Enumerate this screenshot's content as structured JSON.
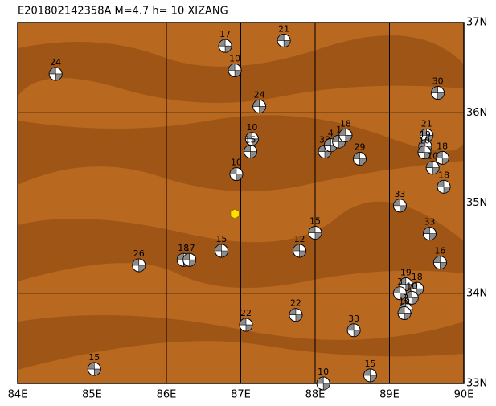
{
  "chart_data": {
    "type": "scatter",
    "title": "E201802142358A  M=4.7  h= 10  XIZANG",
    "xlim": [
      84,
      90
    ],
    "ylim": [
      33,
      37
    ],
    "xticks": [
      {
        "value": 84,
        "label": "84E"
      },
      {
        "value": 85,
        "label": "85E"
      },
      {
        "value": 86,
        "label": "86E"
      },
      {
        "value": 87,
        "label": "87E"
      },
      {
        "value": 88,
        "label": "88E"
      },
      {
        "value": 89,
        "label": "89E"
      },
      {
        "value": 90,
        "label": "90E"
      }
    ],
    "yticks": [
      {
        "value": 33,
        "label": "33N"
      },
      {
        "value": 34,
        "label": "34N"
      },
      {
        "value": 35,
        "label": "35N"
      },
      {
        "value": 36,
        "label": "36N"
      },
      {
        "value": 37,
        "label": "37N"
      }
    ],
    "grid": true,
    "background": "#b8691f",
    "color": "#8c8c8c",
    "x": [
      84.51,
      86.79,
      86.92,
      87.58,
      87.25,
      89.65,
      87.15,
      87.13,
      86.94,
      88.13,
      88.21,
      88.32,
      88.41,
      88.6,
      89.5,
      89.48,
      89.47,
      89.71,
      89.58,
      89.73,
      89.14,
      89.54,
      89.68,
      88.0,
      87.79,
      85.63,
      86.23,
      86.31,
      86.74,
      87.07,
      87.74,
      88.52,
      85.03,
      88.11,
      88.74,
      89.22,
      89.14,
      89.37,
      89.3,
      89.22,
      89.2
    ],
    "y": [
      36.43,
      36.74,
      36.47,
      36.8,
      36.07,
      36.22,
      35.71,
      35.57,
      35.32,
      35.57,
      35.64,
      35.68,
      35.75,
      35.49,
      35.75,
      35.63,
      35.56,
      35.5,
      35.39,
      35.18,
      34.97,
      34.66,
      34.34,
      34.67,
      34.47,
      34.31,
      34.37,
      34.37,
      34.47,
      33.65,
      33.76,
      33.59,
      33.16,
      33.0,
      33.09,
      34.1,
      34.0,
      34.05,
      33.95,
      33.82,
      33.78
    ],
    "labels": [
      24,
      17,
      10,
      21,
      24,
      30,
      10,
      15,
      10,
      33,
      4,
      1,
      18,
      29,
      21,
      19,
      10,
      18,
      10,
      18,
      33,
      33,
      16,
      15,
      12,
      26,
      18,
      17,
      15,
      22,
      22,
      33,
      15,
      10,
      15,
      19,
      3,
      18,
      10,
      3,
      10
    ],
    "epicenter": {
      "x": 86.92,
      "y": 34.88,
      "color": "#ffe000"
    }
  }
}
